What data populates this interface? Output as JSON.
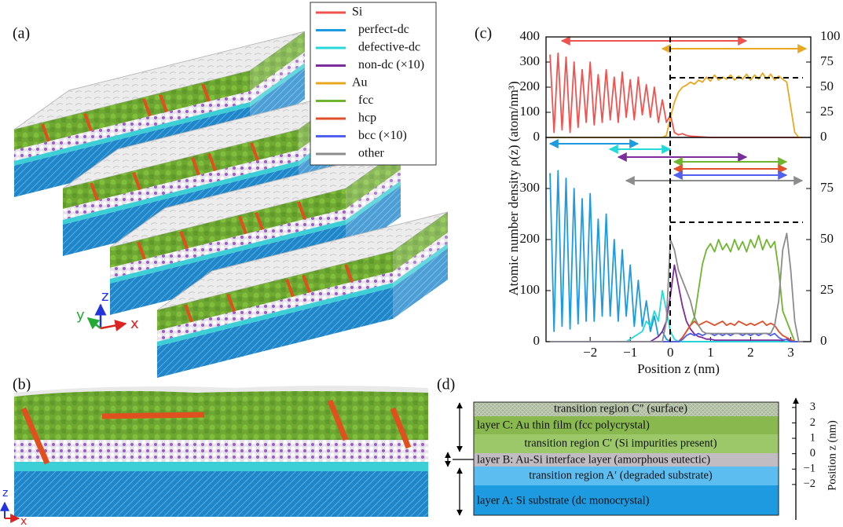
{
  "panel_labels": {
    "a": "(a)",
    "b": "(b)",
    "c": "(c)",
    "d": "(d)"
  },
  "triad_a": {
    "z": "z",
    "y": "y",
    "x": "x"
  },
  "triad_b": {
    "z": "z",
    "x": "x"
  },
  "chart_data": [
    {
      "type": "line",
      "x": [
        -3.0,
        -2.9,
        -2.8,
        -2.7,
        -2.6,
        -2.5,
        -2.4,
        -2.3,
        -2.2,
        -2.1,
        -2.0,
        -1.9,
        -1.8,
        -1.7,
        -1.6,
        -1.5,
        -1.4,
        -1.3,
        -1.2,
        -1.1,
        -1.0,
        -0.9,
        -0.8,
        -0.7,
        -0.6,
        -0.5,
        -0.4,
        -0.3,
        -0.2,
        -0.1,
        0.0,
        0.1,
        0.2,
        0.3,
        0.4,
        0.5,
        0.6,
        0.7,
        0.8,
        0.9,
        1.0,
        1.1,
        1.2,
        1.3,
        1.4,
        1.5,
        1.6,
        1.7,
        1.8,
        1.9,
        2.0,
        2.1,
        2.2,
        2.3,
        2.4,
        2.5,
        2.6,
        2.7,
        2.8,
        2.9,
        3.0,
        3.1,
        3.2,
        3.3
      ],
      "xlim": [
        -3.1,
        3.5
      ],
      "ylim": [
        0,
        400
      ],
      "yticks": [
        0,
        100,
        200,
        300,
        400
      ],
      "y2lim": [
        0,
        100
      ],
      "y2ticks": [
        0,
        25,
        50,
        75,
        100
      ],
      "series": [
        {
          "name": "Si",
          "color": "#ef5350",
          "values": [
            330,
            20,
            335,
            30,
            320,
            20,
            300,
            40,
            270,
            60,
            300,
            50,
            250,
            60,
            270,
            70,
            240,
            60,
            260,
            80,
            230,
            70,
            240,
            90,
            210,
            80,
            200,
            60,
            150,
            60,
            90,
            20,
            10,
            15,
            8,
            5,
            4,
            3,
            2,
            1,
            0,
            0,
            0,
            0,
            0,
            0,
            0,
            0,
            0,
            0,
            0,
            0,
            0,
            0,
            0,
            0,
            0,
            0,
            0,
            0,
            0,
            0,
            0,
            0
          ]
        },
        {
          "name": "Au",
          "color": "#e8a820",
          "axis": "y2",
          "values": [
            0,
            0,
            0,
            0,
            0,
            0,
            0,
            0,
            0,
            0,
            0,
            0,
            0,
            0,
            0,
            0,
            0,
            0,
            0,
            0,
            0,
            0,
            0,
            0,
            0,
            0,
            0,
            0,
            0,
            2,
            20,
            35,
            45,
            50,
            52,
            55,
            53,
            57,
            55,
            60,
            56,
            62,
            57,
            60,
            58,
            62,
            57,
            61,
            58,
            63,
            57,
            62,
            58,
            64,
            58,
            63,
            57,
            61,
            58,
            55,
            30,
            5,
            0,
            0
          ]
        }
      ]
    },
    {
      "type": "line",
      "x": [
        -3.0,
        -2.9,
        -2.8,
        -2.7,
        -2.6,
        -2.5,
        -2.4,
        -2.3,
        -2.2,
        -2.1,
        -2.0,
        -1.9,
        -1.8,
        -1.7,
        -1.6,
        -1.5,
        -1.4,
        -1.3,
        -1.2,
        -1.1,
        -1.0,
        -0.9,
        -0.8,
        -0.7,
        -0.6,
        -0.5,
        -0.4,
        -0.3,
        -0.2,
        -0.1,
        0.0,
        0.1,
        0.2,
        0.3,
        0.4,
        0.5,
        0.6,
        0.7,
        0.8,
        0.9,
        1.0,
        1.1,
        1.2,
        1.3,
        1.4,
        1.5,
        1.6,
        1.7,
        1.8,
        1.9,
        2.0,
        2.1,
        2.2,
        2.3,
        2.4,
        2.5,
        2.6,
        2.7,
        2.8,
        2.9,
        3.0,
        3.1,
        3.2,
        3.3
      ],
      "xlim": [
        -3.1,
        3.5
      ],
      "xticks": [
        {
          "value": -2,
          "label": "−2"
        },
        {
          "value": -1,
          "label": "−1"
        },
        0,
        1,
        2,
        3
      ],
      "xlabel": "Position z (nm)",
      "ylabel": "Atomic number density ρ(z) (atom/nm³)",
      "ylim": [
        0,
        400
      ],
      "yticks": [
        0,
        100,
        200,
        300
      ],
      "y2lim": [
        0,
        100
      ],
      "y2ticks": [
        0,
        25,
        50,
        75
      ],
      "series": [
        {
          "name": "perfect-dc",
          "color": "#1e9ae0",
          "values": [
            330,
            20,
            335,
            30,
            320,
            25,
            300,
            35,
            280,
            40,
            290,
            40,
            240,
            50,
            250,
            50,
            200,
            40,
            180,
            50,
            150,
            30,
            120,
            30,
            80,
            20,
            50,
            10,
            20,
            5,
            0,
            0,
            0,
            0,
            0,
            0,
            0,
            0,
            0,
            0,
            0,
            0,
            0,
            0,
            0,
            0,
            0,
            0,
            0,
            0,
            0,
            0,
            0,
            0,
            0,
            0,
            0,
            0,
            0,
            0,
            0,
            0,
            0,
            0
          ]
        },
        {
          "name": "defective-dc",
          "color": "#26d9d9",
          "values": [
            0,
            0,
            0,
            0,
            0,
            0,
            0,
            0,
            0,
            0,
            0,
            0,
            0,
            0,
            0,
            0,
            0,
            0,
            0,
            0,
            5,
            10,
            15,
            20,
            40,
            30,
            60,
            40,
            100,
            60,
            20,
            5,
            0,
            0,
            0,
            0,
            0,
            0,
            0,
            0,
            0,
            0,
            0,
            0,
            0,
            0,
            0,
            0,
            0,
            0,
            0,
            0,
            0,
            0,
            0,
            0,
            0,
            0,
            0,
            0,
            0,
            0,
            0,
            0
          ]
        },
        {
          "name": "non-dc (×10)",
          "color": "#7b2d9b",
          "values": [
            0,
            0,
            0,
            0,
            0,
            0,
            0,
            0,
            0,
            0,
            0,
            0,
            0,
            0,
            0,
            0,
            0,
            0,
            0,
            0,
            0,
            0,
            0,
            0,
            0,
            0,
            5,
            10,
            20,
            40,
            90,
            150,
            110,
            70,
            40,
            25,
            15,
            10,
            8,
            5,
            5,
            3,
            3,
            3,
            3,
            3,
            3,
            3,
            3,
            3,
            3,
            3,
            3,
            3,
            3,
            3,
            3,
            3,
            2,
            5,
            3,
            0,
            0,
            0
          ]
        },
        {
          "name": "fcc",
          "color": "#6fb52f",
          "axis": "y2",
          "values": [
            0,
            0,
            0,
            0,
            0,
            0,
            0,
            0,
            0,
            0,
            0,
            0,
            0,
            0,
            0,
            0,
            0,
            0,
            0,
            0,
            0,
            0,
            0,
            0,
            0,
            0,
            0,
            0,
            0,
            0,
            0,
            0,
            0,
            2,
            5,
            8,
            12,
            25,
            38,
            45,
            48,
            44,
            50,
            45,
            48,
            44,
            50,
            45,
            49,
            44,
            50,
            46,
            52,
            45,
            50,
            46,
            49,
            35,
            15,
            10,
            5,
            0,
            0,
            0
          ]
        },
        {
          "name": "hcp",
          "color": "#e0502a",
          "axis": "y2",
          "values": [
            0,
            0,
            0,
            0,
            0,
            0,
            0,
            0,
            0,
            0,
            0,
            0,
            0,
            0,
            0,
            0,
            0,
            0,
            0,
            0,
            0,
            0,
            0,
            0,
            0,
            0,
            0,
            0,
            0,
            0,
            0,
            0,
            0,
            2,
            5,
            8,
            10,
            8,
            9,
            10,
            9,
            8,
            9,
            10,
            8,
            9,
            8,
            10,
            9,
            8,
            9,
            8,
            9,
            10,
            8,
            9,
            8,
            5,
            3,
            2,
            1,
            0,
            0,
            0
          ]
        },
        {
          "name": "bcc (×10)",
          "color": "#5060f0",
          "axis": "y2",
          "values": [
            0,
            0,
            0,
            0,
            0,
            0,
            0,
            0,
            0,
            0,
            0,
            0,
            0,
            0,
            0,
            0,
            0,
            0,
            0,
            0,
            0,
            0,
            0,
            0,
            0,
            0,
            0,
            0,
            0,
            0,
            0,
            0,
            0,
            1,
            3,
            4,
            3,
            4,
            3,
            4,
            4,
            3,
            4,
            3,
            4,
            3,
            4,
            4,
            3,
            4,
            3,
            4,
            3,
            4,
            4,
            3,
            4,
            2,
            1,
            1,
            0,
            0,
            0,
            0
          ]
        },
        {
          "name": "other",
          "color": "#8c8c8c",
          "axis": "y2",
          "values": [
            0,
            0,
            0,
            0,
            0,
            0,
            0,
            0,
            0,
            0,
            0,
            0,
            0,
            0,
            0,
            0,
            0,
            0,
            0,
            0,
            0,
            0,
            0,
            0,
            0,
            0,
            0,
            0,
            0,
            10,
            50,
            45,
            35,
            30,
            25,
            20,
            12,
            8,
            5,
            4,
            4,
            4,
            4,
            4,
            4,
            4,
            4,
            4,
            4,
            4,
            4,
            4,
            4,
            4,
            4,
            4,
            8,
            20,
            45,
            53,
            35,
            10,
            0,
            0
          ]
        }
      ]
    }
  ],
  "layers": {
    "regions": [
      "transition region C″ (surface)",
      "layer C: Au thin film (fcc polycrystal)",
      "transition region C′ (Si impurities present)",
      "layer B: Au-Si interface layer (amorphous eutectic)",
      "transition region A′ (degraded substrate)",
      "layer A: Si substrate (dc monocrystal)"
    ],
    "ylabel": "Position z (nm)",
    "ylim": [
      -4.2,
      3.4
    ],
    "yticks": [
      3,
      2,
      1,
      0,
      {
        "value": -1,
        "label": "−1"
      },
      {
        "value": -2,
        "label": "−2"
      }
    ]
  }
}
